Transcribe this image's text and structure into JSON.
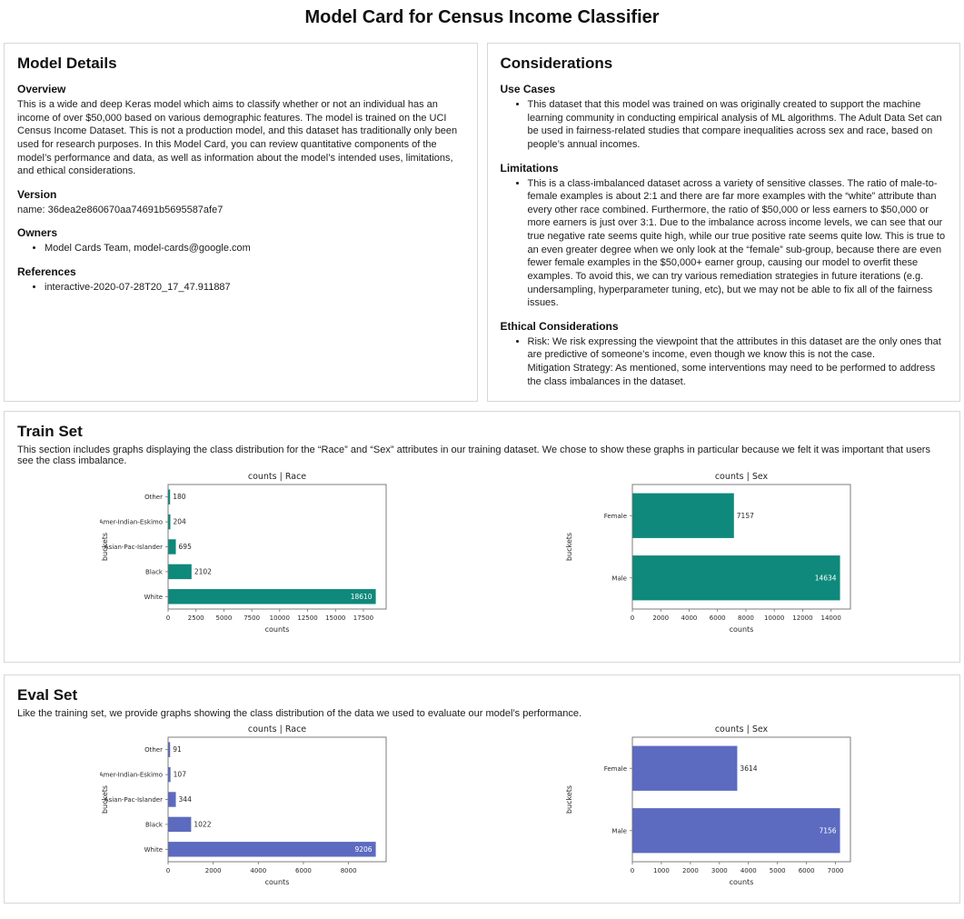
{
  "page": {
    "title": "Model Card for Census Income Classifier"
  },
  "model_details": {
    "title": "Model Details",
    "overview": {
      "heading": "Overview",
      "text": "This is a wide and deep Keras model which aims to classify whether or not an individual has an income of over $50,000 based on various demographic features. The model is trained on the UCI Census Income Dataset. This is not a production model, and this dataset has traditionally only been used for research purposes. In this Model Card, you can review quantitative components of the model’s performance and data, as well as information about the model’s intended uses, limitations, and ethical considerations."
    },
    "version": {
      "heading": "Version",
      "text": "name: 36dea2e860670aa74691b5695587afe7"
    },
    "owners": {
      "heading": "Owners",
      "items": [
        "Model Cards Team, model-cards@google.com"
      ]
    },
    "references": {
      "heading": "References",
      "items": [
        "interactive-2020-07-28T20_17_47.911887"
      ]
    }
  },
  "considerations": {
    "title": "Considerations",
    "use_cases": {
      "heading": "Use Cases",
      "items": [
        "This dataset that this model was trained on was originally created to support the machine learning community in conducting empirical analysis of ML algorithms. The Adult Data Set can be used in fairness-related studies that compare inequalities across sex and race, based on people’s annual incomes."
      ]
    },
    "limitations": {
      "heading": "Limitations",
      "items": [
        "This is a class-imbalanced dataset across a variety of sensitive classes. The ratio of male-to-female examples is about 2:1 and there are far more examples with the “white” attribute than every other race combined. Furthermore, the ratio of $50,000 or less earners to $50,000 or more earners is just over 3:1. Due to the imbalance across income levels, we can see that our true negative rate seems quite high, while our true positive rate seems quite low. This is true to an even greater degree when we only look at the “female” sub-group, because there are even fewer female examples in the $50,000+ earner group, causing our model to overfit these examples. To avoid this, we can try various remediation strategies in future iterations (e.g. undersampling, hyperparameter tuning, etc), but we may not be able to fix all of the fairness issues."
      ]
    },
    "ethical": {
      "heading": "Ethical Considerations",
      "items": [
        "Risk: We risk expressing the viewpoint that the attributes in this dataset are the only ones that are predictive of someone’s income, even though we know this is not the case.\nMitigation Strategy: As mentioned, some interventions may need to be performed to address the class imbalances in the dataset."
      ]
    }
  },
  "train_set": {
    "title": "Train Set",
    "description": "This section includes graphs displaying the class distribution for the “Race” and “Sex” attributes in our training dataset. We chose to show these graphs in particular because we felt it was important that users see the class imbalance."
  },
  "eval_set": {
    "title": "Eval Set",
    "description": "Like the training set, we provide graphs showing the class distribution of the data we used to evaluate our model’s performance."
  },
  "chart_data": [
    {
      "id": "train-race",
      "type": "bar",
      "orientation": "horizontal",
      "title": "counts | Race",
      "xlabel": "counts",
      "ylabel": "buckets",
      "categories": [
        "Other",
        "Amer-Indian-Eskimo",
        "Asian-Pac-Islander",
        "Black",
        "White"
      ],
      "values": [
        180,
        204,
        695,
        2102,
        18610
      ],
      "xticks": [
        0,
        2500,
        5000,
        7500,
        10000,
        12500,
        15000,
        17500
      ],
      "xlim": [
        0,
        19540
      ],
      "grid": false,
      "bar_color": "#0e897b"
    },
    {
      "id": "train-sex",
      "type": "bar",
      "orientation": "horizontal",
      "title": "counts | Sex",
      "xlabel": "counts",
      "ylabel": "buckets",
      "categories": [
        "Female",
        "Male"
      ],
      "values": [
        7157,
        14634
      ],
      "xticks": [
        0,
        2000,
        4000,
        6000,
        8000,
        10000,
        12000,
        14000
      ],
      "xlim": [
        0,
        15366
      ],
      "grid": false,
      "bar_color": "#0e897b"
    },
    {
      "id": "eval-race",
      "type": "bar",
      "orientation": "horizontal",
      "title": "counts | Race",
      "xlabel": "counts",
      "ylabel": "buckets",
      "categories": [
        "Other",
        "Amer-Indian-Eskimo",
        "Asian-Pac-Islander",
        "Black",
        "White"
      ],
      "values": [
        91,
        107,
        344,
        1022,
        9206
      ],
      "xticks": [
        0,
        2000,
        4000,
        6000,
        8000
      ],
      "xlim": [
        0,
        9666
      ],
      "grid": false,
      "bar_color": "#5c6bc0"
    },
    {
      "id": "eval-sex",
      "type": "bar",
      "orientation": "horizontal",
      "title": "counts | Sex",
      "xlabel": "counts",
      "ylabel": "buckets",
      "categories": [
        "Female",
        "Male"
      ],
      "values": [
        3614,
        7156
      ],
      "xticks": [
        0,
        1000,
        2000,
        3000,
        4000,
        5000,
        6000,
        7000
      ],
      "xlim": [
        0,
        7514
      ],
      "grid": false,
      "bar_color": "#5c6bc0"
    }
  ]
}
